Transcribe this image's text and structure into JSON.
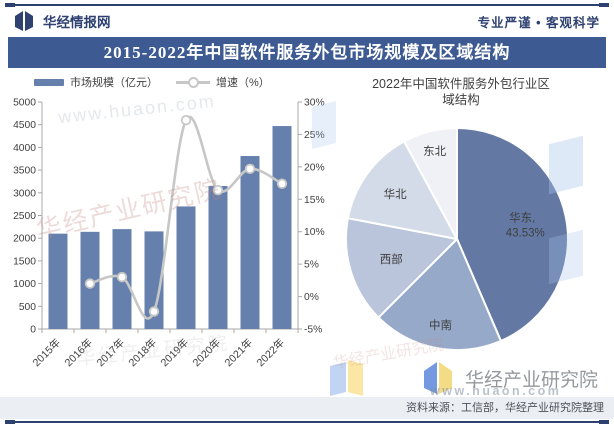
{
  "header": {
    "brand": "华经情报网",
    "slogan": "专业严谨 • 客观科学"
  },
  "banner": {
    "title": "2015-2022年中国软件服务外包市场规模及区域结构"
  },
  "market_chart": {
    "legend_bar": "市场规模（亿元）",
    "legend_line": "增速（%）"
  },
  "pie_chart": {
    "title": "2022年中国软件服务外包行业区域结构"
  },
  "footer": {
    "brand": "华经产业研究院",
    "source": "资料来源：工信部，华经产业研究院整理"
  },
  "watermarks": {
    "site": "www.huaon.com",
    "org": "华经产业研究院"
  },
  "colors": {
    "rule": "#2D4170",
    "banner_bg": "#3D5A92",
    "brand_navy": "#2E4170",
    "bar": "#6580AC",
    "line": "#C7C7C7",
    "axis": "#A9A9A9",
    "text": "#3F3F3F",
    "pie": [
      "#6379A4",
      "#97A9C9",
      "#BAC4DA",
      "#D3DAE8",
      "#EFF1F6"
    ],
    "source_bg": "#EBEFF4",
    "source_text": "#4B5158",
    "footer_brand_text": "#95999E",
    "logo_blue": "#7499E0",
    "logo_yellow": "#F3DC86"
  },
  "chart_data": [
    {
      "type": "bar",
      "title": "",
      "categories": [
        "2015年",
        "2016年",
        "2017年",
        "2018年",
        "2019年",
        "2020年",
        "2021年",
        "2022年"
      ],
      "series": [
        {
          "name": "市场规模（亿元）",
          "kind": "bar",
          "axis": "left",
          "values": [
            2100,
            2140,
            2200,
            2150,
            2700,
            3150,
            3810,
            4470
          ]
        },
        {
          "name": "增速（%）",
          "kind": "line",
          "axis": "right",
          "values": [
            null,
            2.0,
            3.0,
            -2.3,
            27.2,
            16.4,
            19.7,
            17.4
          ]
        }
      ],
      "y_left": {
        "min": 0,
        "max": 5000,
        "step": 500
      },
      "y_right": {
        "min": -5,
        "max": 30,
        "step": 5,
        "unit": "%"
      },
      "legend_position": "top",
      "grid": false
    },
    {
      "type": "pie",
      "title": "2022年中国软件服务外包行业区域结构",
      "labels": [
        "华东",
        "中南",
        "西部",
        "华北",
        "东北"
      ],
      "values": [
        43.53,
        18.97,
        15.5,
        14.1,
        7.9
      ],
      "value_labels": [
        "43.53%",
        "",
        "",
        "",
        ""
      ],
      "start_angle_deg": 0,
      "direction": "clockwise",
      "legend_position": "none"
    }
  ]
}
